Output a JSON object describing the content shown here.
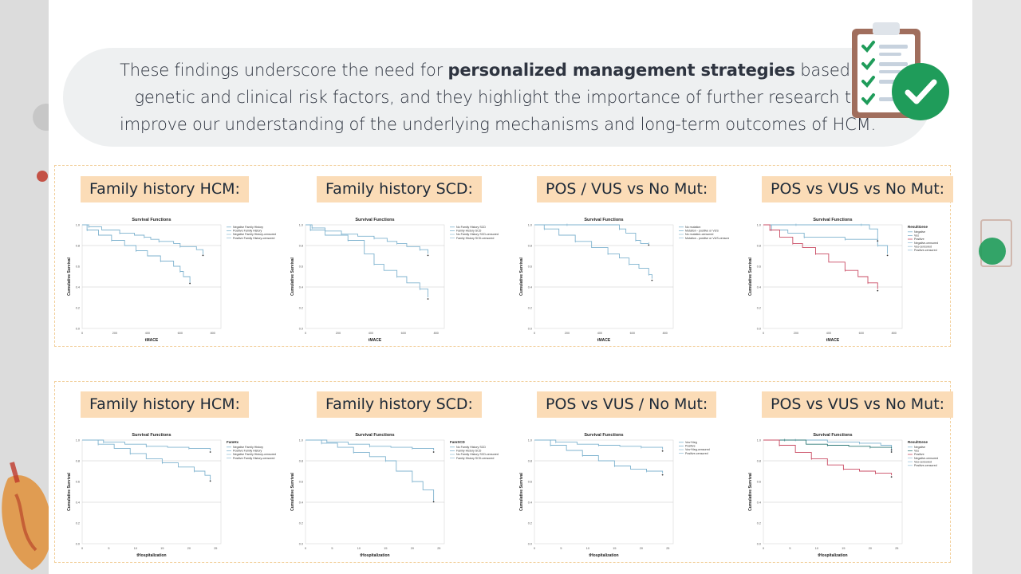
{
  "slide": {
    "banner": {
      "pre": "These findings underscore the need for ",
      "bold": "personalized management strategies",
      "post": " based on genetic and clinical risk factors, and they highlight the importance of further research to improve our understanding of the underlying mechanisms and long-term outcomes of HCM."
    },
    "icon": "clipboard-checklist-icon",
    "colors": {
      "accent": "#fbdcb7",
      "check": "#1f9c5a",
      "clipboard": "#a06e5d",
      "curve_blue": "#7fb3cf",
      "curve_red": "#c94b63"
    }
  },
  "chart_data": [
    {
      "type": "line",
      "label": "Family history HCM:",
      "title": "Survival Functions",
      "xlabel": "tMACE",
      "ylabel": "Cumulative Survival",
      "legend_title": "",
      "legend": [
        "Negative Family History",
        "Positive Family History",
        "Negative Family History-censored",
        "Positive Family History-censored"
      ],
      "xticks": [
        "0",
        "200",
        "400",
        "600",
        "800"
      ],
      "yticks": [
        "0.0",
        "0.2",
        "0.4",
        "0.6",
        "0.8",
        "1.0"
      ],
      "ylim": [
        0,
        1.0
      ],
      "xlim": [
        0,
        850
      ],
      "series": [
        {
          "name": "Negative Family History",
          "color": "#7fb3cf",
          "x": [
            0,
            40,
            120,
            230,
            320,
            380,
            420,
            470,
            560,
            600,
            700,
            740
          ],
          "y": [
            1.0,
            0.98,
            0.95,
            0.92,
            0.9,
            0.88,
            0.86,
            0.84,
            0.82,
            0.79,
            0.76,
            0.72
          ]
        },
        {
          "name": "Positive Family History",
          "color": "#7fb3cf",
          "x": [
            0,
            30,
            100,
            180,
            260,
            330,
            400,
            480,
            560,
            600,
            620,
            660
          ],
          "y": [
            1.0,
            0.95,
            0.9,
            0.85,
            0.8,
            0.75,
            0.7,
            0.65,
            0.6,
            0.55,
            0.5,
            0.45
          ]
        }
      ]
    },
    {
      "type": "line",
      "label": "Family history SCD:",
      "title": "Survival Functions",
      "xlabel": "tMACE",
      "ylabel": "Cumulative Survival",
      "legend_title": "",
      "legend": [
        "No Family History SCD",
        "Family History SCD",
        "No Family History SCD-censored",
        "Family History SCD-censored"
      ],
      "xticks": [
        "0",
        "200",
        "400",
        "600",
        "800"
      ],
      "yticks": [
        "0.0",
        "0.2",
        "0.4",
        "0.6",
        "0.8",
        "1.0"
      ],
      "ylim": [
        0,
        1.0
      ],
      "xlim": [
        0,
        850
      ],
      "series": [
        {
          "name": "No Family History SCD",
          "color": "#7fb3cf",
          "x": [
            0,
            40,
            120,
            220,
            320,
            420,
            500,
            560,
            620,
            700,
            750
          ],
          "y": [
            1.0,
            0.97,
            0.94,
            0.91,
            0.89,
            0.87,
            0.84,
            0.82,
            0.79,
            0.76,
            0.72
          ]
        },
        {
          "name": "Family History SCD",
          "color": "#7fb3cf",
          "x": [
            0,
            30,
            120,
            260,
            360,
            420,
            480,
            560,
            620,
            700,
            750
          ],
          "y": [
            1.0,
            0.95,
            0.9,
            0.85,
            0.72,
            0.62,
            0.56,
            0.5,
            0.44,
            0.38,
            0.3
          ]
        }
      ]
    },
    {
      "type": "line",
      "label": "POS / VUS vs No Mut:",
      "title": "Survival Functions",
      "xlabel": "tMACE",
      "ylabel": "Cumulative Survival",
      "legend_title": "",
      "legend": [
        "No mutation",
        "Mutation - positive or VUS",
        "No mutation-censored",
        "Mutation - positive or VUS-censored"
      ],
      "xticks": [
        "0",
        "200",
        "400",
        "600",
        "800"
      ],
      "yticks": [
        "0.0",
        "0.2",
        "0.4",
        "0.6",
        "0.8",
        "1.0"
      ],
      "ylim": [
        0,
        1.0
      ],
      "xlim": [
        0,
        850
      ],
      "series": [
        {
          "name": "No mutation",
          "color": "#7fb3cf",
          "x": [
            0,
            200,
            400,
            520,
            560,
            620,
            650,
            700
          ],
          "y": [
            1.0,
            1.0,
            1.0,
            0.96,
            0.92,
            0.85,
            0.82,
            0.82
          ]
        },
        {
          "name": "Mutation - positive or VUS",
          "color": "#7fb3cf",
          "x": [
            0,
            60,
            150,
            250,
            350,
            450,
            520,
            580,
            640,
            700,
            720
          ],
          "y": [
            1.0,
            0.96,
            0.9,
            0.84,
            0.78,
            0.72,
            0.68,
            0.62,
            0.58,
            0.52,
            0.48
          ]
        }
      ]
    },
    {
      "type": "line",
      "label": "POS vs VUS vs No Mut:",
      "title": "Survival Functions",
      "xlabel": "tMACE",
      "ylabel": "Cumulative Survival",
      "legend_title": "ResultGene",
      "legend": [
        "Negative",
        "Vus",
        "Positive",
        "Negative-censored",
        "Vus-censored",
        "Positive-censored"
      ],
      "xticks": [
        "0",
        "200",
        "400",
        "600",
        "800"
      ],
      "yticks": [
        "0.0",
        "0.2",
        "0.4",
        "0.6",
        "0.8",
        "1.0"
      ],
      "ylim": [
        0,
        1.0
      ],
      "xlim": [
        0,
        850
      ],
      "series": [
        {
          "name": "Negative",
          "color": "#7fb3cf",
          "x": [
            0,
            200,
            400,
            600,
            650,
            700,
            760
          ],
          "y": [
            1.0,
            1.0,
            1.0,
            1.0,
            0.96,
            0.8,
            0.72
          ]
        },
        {
          "name": "Vus",
          "color": "#7fb3cf",
          "x": [
            0,
            50,
            150,
            250,
            400,
            500,
            600,
            700
          ],
          "y": [
            1.0,
            0.95,
            0.92,
            0.88,
            0.88,
            0.86,
            0.86,
            0.86
          ]
        },
        {
          "name": "Positive",
          "color": "#c94b63",
          "x": [
            0,
            40,
            100,
            180,
            240,
            320,
            400,
            500,
            580,
            640,
            700
          ],
          "y": [
            1.0,
            0.95,
            0.88,
            0.82,
            0.78,
            0.72,
            0.64,
            0.56,
            0.5,
            0.44,
            0.38
          ]
        }
      ]
    },
    {
      "type": "line",
      "label": "Family history HCM:",
      "title": "Survival Functions",
      "xlabel": "tHospitalization",
      "ylabel": "Cumulative Survival",
      "legend_title": "FamHx",
      "legend": [
        "Negative Family History",
        "Positive Family History",
        "Negative Family History-censored",
        "Positive Family History-censored"
      ],
      "xticks": [
        "0",
        "5",
        "10",
        "15",
        "20",
        "25"
      ],
      "yticks": [
        "0.0",
        "0.2",
        "0.4",
        "0.6",
        "0.8",
        "1.0"
      ],
      "ylim": [
        0,
        1.0
      ],
      "xlim": [
        0,
        26
      ],
      "series": [
        {
          "name": "Negative Family History",
          "color": "#7fb3cf",
          "x": [
            0,
            4,
            8,
            12,
            16,
            20,
            24
          ],
          "y": [
            1.0,
            0.98,
            0.96,
            0.94,
            0.93,
            0.92,
            0.9
          ]
        },
        {
          "name": "Positive Family History",
          "color": "#7fb3cf",
          "x": [
            0,
            3,
            6,
            9,
            12,
            15,
            18,
            21,
            23,
            24
          ],
          "y": [
            1.0,
            0.96,
            0.92,
            0.87,
            0.82,
            0.78,
            0.74,
            0.7,
            0.66,
            0.62
          ]
        }
      ]
    },
    {
      "type": "line",
      "label": "Family history SCD:",
      "title": "Survival Functions",
      "xlabel": "tHospitalization",
      "ylabel": "Cumulative Survival",
      "legend_title": "FamSCD",
      "legend": [
        "No Family History SCD",
        "Family History SCD",
        "No Family History SCD-censored",
        "Family History SCD-censored"
      ],
      "xticks": [
        "0",
        "5",
        "10",
        "15",
        "20",
        "25"
      ],
      "yticks": [
        "0.0",
        "0.2",
        "0.4",
        "0.6",
        "0.8",
        "1.0"
      ],
      "ylim": [
        0,
        1.0
      ],
      "xlim": [
        0,
        26
      ],
      "series": [
        {
          "name": "No Family History SCD",
          "color": "#7fb3cf",
          "x": [
            0,
            4,
            8,
            12,
            16,
            20,
            24
          ],
          "y": [
            1.0,
            0.98,
            0.96,
            0.94,
            0.93,
            0.92,
            0.9
          ]
        },
        {
          "name": "Family History SCD",
          "color": "#7fb3cf",
          "x": [
            0,
            3,
            6,
            9,
            12,
            15,
            17,
            20,
            22,
            24
          ],
          "y": [
            1.0,
            0.97,
            0.93,
            0.88,
            0.84,
            0.8,
            0.7,
            0.6,
            0.52,
            0.42
          ]
        }
      ]
    },
    {
      "type": "line",
      "label": "POS vs VUS / No Mut:",
      "title": "Survival Functions",
      "xlabel": "tHospitalization",
      "ylabel": "Cumulative Survival",
      "legend_title": "",
      "legend": [
        "Vus+Neg",
        "Positive",
        "Vus+Neg-censored",
        "Positive-censored"
      ],
      "xticks": [
        "0",
        "5",
        "10",
        "15",
        "20",
        "25"
      ],
      "yticks": [
        "0.0",
        "0.2",
        "0.4",
        "0.6",
        "0.8",
        "1.0"
      ],
      "ylim": [
        0,
        1.0
      ],
      "xlim": [
        0,
        26
      ],
      "series": [
        {
          "name": "Vus+Neg",
          "color": "#7fb3cf",
          "x": [
            0,
            4,
            8,
            12,
            16,
            20,
            24
          ],
          "y": [
            1.0,
            0.98,
            0.96,
            0.95,
            0.94,
            0.93,
            0.91
          ]
        },
        {
          "name": "Positive",
          "color": "#7fb3cf",
          "x": [
            0,
            3,
            6,
            9,
            12,
            15,
            18,
            21,
            24
          ],
          "y": [
            1.0,
            0.95,
            0.9,
            0.85,
            0.8,
            0.75,
            0.72,
            0.7,
            0.68
          ]
        }
      ]
    },
    {
      "type": "line",
      "label": "POS vs VUS vs No Mut:",
      "title": "Survival Functions",
      "xlabel": "tHospitalization",
      "ylabel": "Cumulative Survival",
      "legend_title": "ResultGene",
      "legend": [
        "Negative",
        "Vus",
        "Positive",
        "Negative-censored",
        "Vus-censored",
        "Positive-censored"
      ],
      "xticks": [
        "0",
        "5",
        "10",
        "15",
        "20",
        "25"
      ],
      "yticks": [
        "0.0",
        "0.2",
        "0.4",
        "0.6",
        "0.8",
        "1.0"
      ],
      "ylim": [
        0,
        1.0
      ],
      "xlim": [
        0,
        26
      ],
      "series": [
        {
          "name": "Negative",
          "color": "#7fb3cf",
          "x": [
            0,
            6,
            12,
            18,
            22,
            24
          ],
          "y": [
            1.0,
            1.0,
            0.98,
            0.97,
            0.95,
            0.9
          ]
        },
        {
          "name": "Vus",
          "color": "#2f7a78",
          "x": [
            0,
            4,
            8,
            12,
            16,
            20,
            24
          ],
          "y": [
            1.0,
            1.0,
            0.96,
            0.95,
            0.94,
            0.93,
            0.92
          ]
        },
        {
          "name": "Positive",
          "color": "#c94b63",
          "x": [
            0,
            3,
            6,
            9,
            12,
            15,
            18,
            21,
            24
          ],
          "y": [
            1.0,
            0.95,
            0.88,
            0.82,
            0.76,
            0.72,
            0.7,
            0.68,
            0.66
          ]
        }
      ]
    }
  ]
}
